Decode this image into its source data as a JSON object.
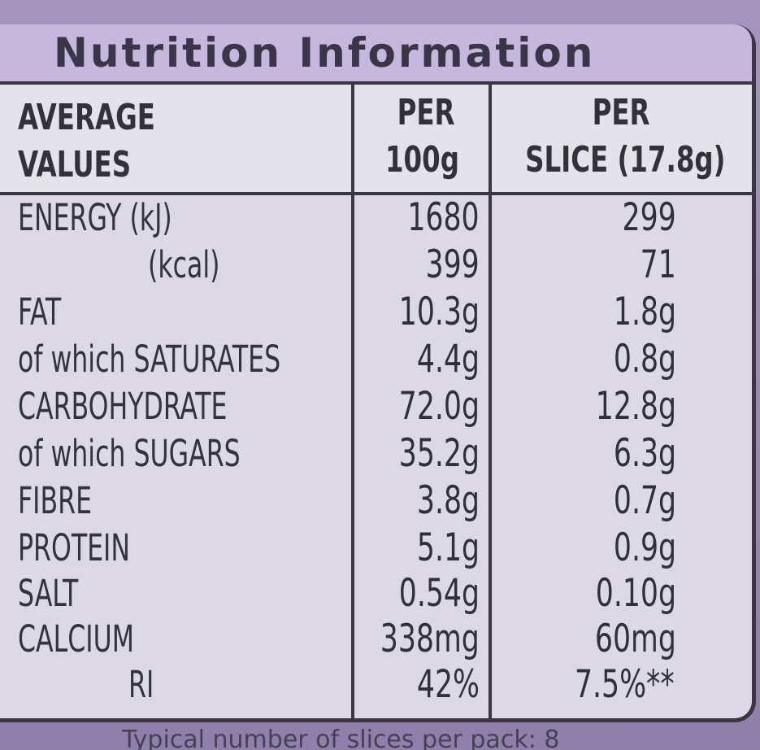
{
  "label": {
    "title": "Nutrition Information",
    "header": {
      "col1": [
        "AVERAGE",
        "VALUES"
      ],
      "col2": [
        "PER",
        "100g"
      ],
      "col3": [
        "PER",
        "SLICE (17.8g)"
      ]
    },
    "rows": [
      {
        "label": "ENERGY (kJ)",
        "per100": "1680",
        "perSlice": "299"
      },
      {
        "label": "(kcal)",
        "per100": "399",
        "perSlice": "71"
      },
      {
        "label": "FAT",
        "per100": "10.3g",
        "perSlice": "1.8g"
      },
      {
        "label": "of which SATURATES",
        "per100": "4.4g",
        "perSlice": "0.8g"
      },
      {
        "label": "CARBOHYDRATE",
        "per100": "72.0g",
        "perSlice": "12.8g"
      },
      {
        "label": "of which SUGARS",
        "per100": "35.2g",
        "perSlice": "6.3g"
      },
      {
        "label": "FIBRE",
        "per100": "3.8g",
        "perSlice": "0.7g"
      },
      {
        "label": "PROTEIN",
        "per100": "5.1g",
        "perSlice": "0.9g"
      },
      {
        "label": "SALT",
        "per100": "0.54g",
        "perSlice": "0.10g"
      },
      {
        "label": "CALCIUM",
        "per100": "338mg",
        "perSlice": "60mg"
      },
      {
        "label": "RI",
        "per100": "42%",
        "perSlice": "7.5%**"
      }
    ],
    "footer": "Typical number of slices per pack: 8"
  },
  "colors": {
    "background": "#9c8cb6",
    "panel": "#dcd8e6",
    "title_band": "#c6b7dd",
    "rule": "#3a3644"
  }
}
